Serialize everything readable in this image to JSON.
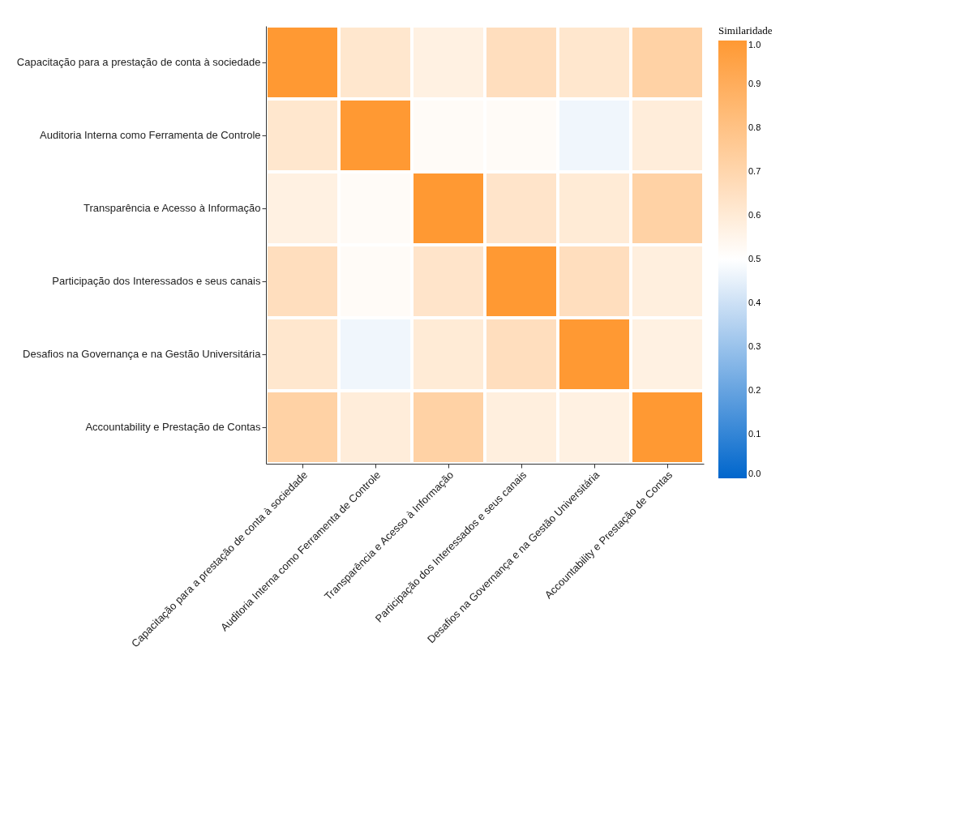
{
  "chart_data": {
    "type": "heatmap",
    "legend_title": "Similaridade",
    "categories": [
      "Capacitação para a prestação de conta à sociedade",
      "Auditoria Interna como Ferramenta de Controle",
      "Transparência e Acesso à Informação",
      "Participação dos Interessados e seus canais",
      "Desafios na Governança e na Gestão Universitária",
      "Accountability e Prestação de Contas"
    ],
    "y_categories": [
      "Capacitação para a prestação de conta à sociedade",
      "Auditoria Interna como Ferramenta de Controle",
      "Transparência e Acesso à Informação",
      "Participação dos Interessados e seus canais",
      "Desafios na Governança e na Gestão Universitária",
      "Accountability e Prestação de Contas"
    ],
    "cells": [
      [
        1.0,
        0.62,
        0.57,
        0.66,
        0.62,
        0.72
      ],
      [
        0.62,
        1.0,
        0.52,
        0.52,
        0.47,
        0.59
      ],
      [
        0.57,
        0.52,
        1.0,
        0.63,
        0.6,
        0.72
      ],
      [
        0.66,
        0.52,
        0.63,
        1.0,
        0.66,
        0.58
      ],
      [
        0.62,
        0.47,
        0.6,
        0.66,
        1.0,
        0.57
      ],
      [
        0.72,
        0.59,
        0.72,
        0.58,
        0.57,
        1.0
      ]
    ],
    "clim": [
      0,
      1
    ],
    "cticks": [
      {
        "value": 0,
        "label": "0.0"
      },
      0.1,
      0.2,
      0.3,
      0.4,
      0.5,
      0.6,
      0.7,
      0.8,
      0.9,
      {
        "value": 1,
        "label": "1.0"
      }
    ],
    "grid": false
  }
}
